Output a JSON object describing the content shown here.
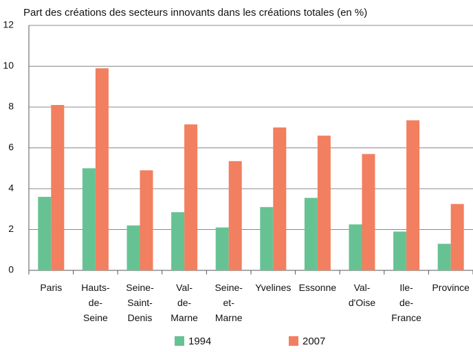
{
  "chart_data": {
    "type": "bar",
    "title": "Part des créations des secteurs innovants dans les créations totales (en %)",
    "categories": [
      "Paris",
      "Hauts-de-Seine",
      "Seine-Saint-Denis",
      "Val-de-Marne",
      "Seine-et-Marne",
      "Yvelines",
      "Essonne",
      "Val-d'Oise",
      "Ile-de-France",
      "Province"
    ],
    "series": [
      {
        "name": "1994",
        "color": "#67c293",
        "values": [
          3.6,
          5.0,
          2.2,
          2.85,
          2.1,
          3.1,
          3.55,
          2.25,
          1.9,
          1.3
        ]
      },
      {
        "name": "2007",
        "color": "#f27f5f",
        "values": [
          8.1,
          9.9,
          4.9,
          7.15,
          5.35,
          7.0,
          6.6,
          5.7,
          7.35,
          3.25
        ]
      }
    ],
    "ylim": [
      0,
      12
    ],
    "yticks": [
      0,
      2,
      4,
      6,
      8,
      10,
      12
    ],
    "grid": true
  }
}
